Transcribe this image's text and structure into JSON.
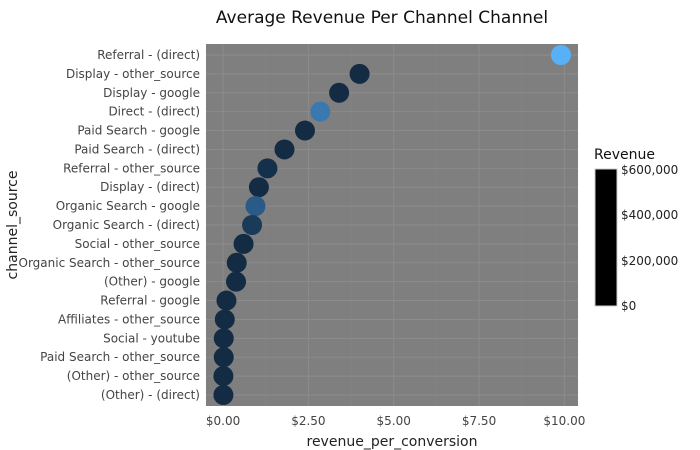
{
  "chart_data": {
    "type": "scatter",
    "title": "Average Revenue Per Channel Channel",
    "xlabel": "revenue_per_conversion",
    "ylabel": "channel_source",
    "xlim": [
      -0.5,
      10.4
    ],
    "x_ticks": [
      0,
      2.5,
      5,
      7.5,
      10
    ],
    "x_tick_labels": [
      "$0.00",
      "$2.50",
      "$5.00",
      "$7.50",
      "$10.00"
    ],
    "grid": true,
    "panel_background": "#7f7f7f",
    "categories": [
      "Referral - (direct)",
      "Display - other_source",
      "Display - google",
      "Direct - (direct)",
      "Paid Search - google",
      "Paid Search - (direct)",
      "Referral - other_source",
      "Display - (direct)",
      "Organic Search - google",
      "Organic Search - (direct)",
      "Social - other_source",
      "Organic Search - other_source",
      "(Other) - google",
      "Referral - google",
      "Affiliates - other_source",
      "Social - youtube",
      "Paid Search - other_source",
      "(Other) - other_source",
      "(Other) - (direct)"
    ],
    "values": [
      9.9,
      4.0,
      3.4,
      2.85,
      2.4,
      1.8,
      1.3,
      1.05,
      0.95,
      0.85,
      0.6,
      0.4,
      0.38,
      0.1,
      0.05,
      0.02,
      0.02,
      0.01,
      0.01
    ],
    "point_colors": [
      "#56b1f7",
      "#132b43",
      "#132b43",
      "#3a78b0",
      "#132b43",
      "#132b43",
      "#15304a",
      "#132b43",
      "#2a5b88",
      "#1a3a5a",
      "#132b43",
      "#132b43",
      "#132b43",
      "#132b43",
      "#132b43",
      "#132b43",
      "#132b43",
      "#132b43",
      "#132b43"
    ],
    "legend": {
      "title": "Revenue",
      "position": "right",
      "labels": [
        "$600,000",
        "$400,000",
        "$200,000",
        "$0"
      ],
      "colorbar_color": "#000000"
    }
  }
}
